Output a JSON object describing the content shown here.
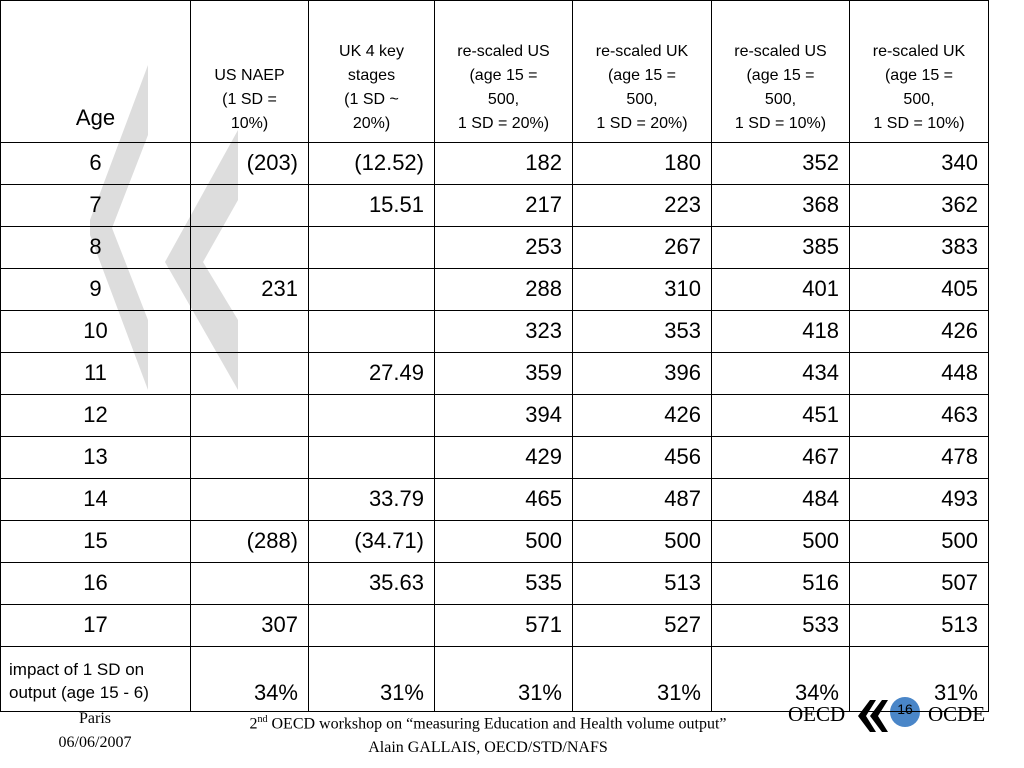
{
  "table": {
    "header": [
      "Age",
      "US NAEP\n(1 SD =\n10%)",
      "UK 4 key\nstages\n(1 SD ~\n20%)",
      "re-scaled US\n(age 15 =\n500,\n1 SD = 20%)",
      "re-scaled UK\n(age 15 =\n500,\n1 SD = 20%)",
      "re-scaled US\n(age 15 =\n500,\n1 SD = 10%)",
      "re-scaled UK\n(age 15 =\n500,\n1 SD = 10%)"
    ],
    "rows": [
      [
        "6",
        "(203)",
        "(12.52)",
        "182",
        "180",
        "352",
        "340"
      ],
      [
        "7",
        null,
        "15.51",
        "217",
        "223",
        "368",
        "362"
      ],
      [
        "8",
        null,
        null,
        "253",
        "267",
        "385",
        "383"
      ],
      [
        "9",
        "231",
        null,
        "288",
        "310",
        "401",
        "405"
      ],
      [
        "10",
        null,
        null,
        "323",
        "353",
        "418",
        "426"
      ],
      [
        "11",
        null,
        "27.49",
        "359",
        "396",
        "434",
        "448"
      ],
      [
        "12",
        null,
        null,
        "394",
        "426",
        "451",
        "463"
      ],
      [
        "13",
        null,
        null,
        "429",
        "456",
        "467",
        "478"
      ],
      [
        "14",
        null,
        "33.79",
        "465",
        "487",
        "484",
        "493"
      ],
      [
        "15",
        "(288)",
        "(34.71)",
        "500",
        "500",
        "500",
        "500"
      ],
      [
        "16",
        null,
        "35.63",
        "535",
        "513",
        "516",
        "507"
      ],
      [
        "17",
        "307",
        null,
        "571",
        "527",
        "533",
        "513"
      ],
      [
        "impact of 1 SD on\noutput (age 15 - 6)",
        "34%",
        "31%",
        "31%",
        "31%",
        "34%",
        "31%"
      ]
    ]
  },
  "footer": {
    "place": "Paris",
    "date": "06/06/2007",
    "workshop_number": "2",
    "workshop_suffix": "nd",
    "workshop_text": "OECD workshop on “measuring Education and Health volume output”",
    "author": "Alain GALLAIS, OECD/STD/NAFS",
    "logo_left": "OECD",
    "page": "16",
    "logo_right": "OCDE"
  }
}
